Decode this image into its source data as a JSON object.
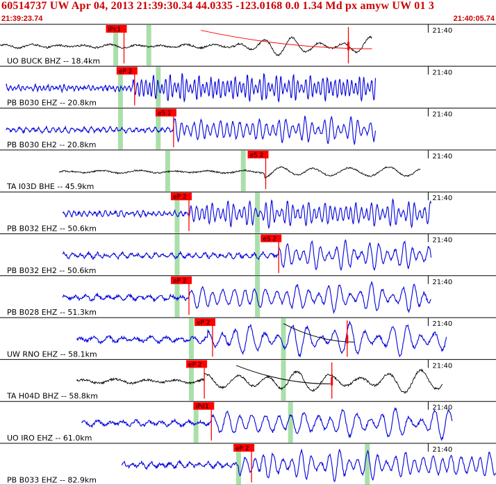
{
  "header": {
    "title": "60514737 UW Apr 04, 2013 21:39:30.34    44.0335 -123.0168  0.0 1.34 Md px amyw UW 01   3",
    "start_time": "21:39:23.74",
    "end_time": "21:40:05.74"
  },
  "colors": {
    "header": "#cc0000",
    "trace_blue": "#0000dd",
    "trace_black": "#000000",
    "pick": "#ff0000",
    "window": "#aadfaa",
    "grid": "#000000"
  },
  "chart_data": {
    "type": "line",
    "title": "",
    "xlabel": "",
    "ylabel": "",
    "x_range_seconds_after_start": [
      0,
      42
    ],
    "minute_marker": {
      "label": "21:40",
      "seconds_after_start": 36.26
    },
    "panels": [
      {
        "station_label": "UO BUCK BHZ -- 18.4km",
        "trace_color": "black",
        "amplitude": 0.55,
        "period": 2.2,
        "onset": 20.0,
        "trace_start": 0.0,
        "trace_end": 31.5,
        "windows": [
          9.8,
          12.6
        ],
        "picks": [
          {
            "label": "iPc1",
            "time": 10.5
          },
          {
            "label": "",
            "time": 29.5
          }
        ],
        "coda_curve": {
          "start": 17.0,
          "end": 31.5
        }
      },
      {
        "station_label": "PB B030 EHZ -- 20.8km",
        "trace_color": "blue",
        "amplitude": 0.85,
        "period": 0.35,
        "onset": 11.2,
        "trace_start": 0.5,
        "trace_end": 31.8,
        "windows": [
          10.2,
          13.4
        ],
        "picks": [
          {
            "label": "eP 2",
            "time": 11.4
          }
        ]
      },
      {
        "station_label": "PB B030 EH2 -- 20.8km",
        "trace_color": "blue",
        "amplitude": 0.8,
        "period": 0.55,
        "onset": 14.7,
        "trace_start": 0.5,
        "trace_end": 31.8,
        "windows": [
          10.2,
          13.4
        ],
        "picks": [
          {
            "label": "eS 1",
            "time": 14.7
          }
        ]
      },
      {
        "station_label": "TA I03D BHE -- 45.9km",
        "trace_color": "black",
        "amplitude": 0.45,
        "period": 3.0,
        "onset": 22.4,
        "trace_start": 5.0,
        "trace_end": 35.6,
        "windows": [
          14.2,
          20.6
        ],
        "picks": [
          {
            "label": "eS 2",
            "time": 22.5
          }
        ]
      },
      {
        "station_label": "PB B032 EHZ -- 50.6km",
        "trace_color": "blue",
        "amplitude": 0.8,
        "period": 0.45,
        "onset": 16.0,
        "trace_start": 5.3,
        "trace_end": 36.5,
        "windows": [
          15.0,
          21.8
        ],
        "picks": [
          {
            "label": "eP 2",
            "time": 16.0
          }
        ]
      },
      {
        "station_label": "PB B032 EH2 -- 50.6km",
        "trace_color": "blue",
        "amplitude": 0.85,
        "period": 0.7,
        "onset": 23.6,
        "trace_start": 5.3,
        "trace_end": 36.5,
        "windows": [
          15.0,
          21.8
        ],
        "picks": [
          {
            "label": "eS 2",
            "time": 23.6
          }
        ]
      },
      {
        "station_label": "PB B028 EHZ -- 51.3km",
        "trace_color": "blue",
        "amplitude": 0.85,
        "period": 0.9,
        "onset": 16.0,
        "trace_start": 5.3,
        "trace_end": 36.5,
        "windows": [
          15.0,
          21.8
        ],
        "picks": [
          {
            "label": "eP 2",
            "time": 16.0
          }
        ]
      },
      {
        "station_label": "UW RNO EHZ -- 58.1km",
        "trace_color": "blue",
        "amplitude": 0.95,
        "period": 1.2,
        "onset": 17.6,
        "trace_start": 6.5,
        "trace_end": 37.8,
        "windows": [
          16.2,
          24.0
        ],
        "picks": [
          {
            "label": "eP 2",
            "time": 18.0
          },
          {
            "label": "",
            "time": 29.4
          }
        ],
        "coda_curve": {
          "start": 24.0,
          "end": 30.0
        }
      },
      {
        "station_label": "TA H04D BHZ -- 58.8km",
        "trace_color": "black",
        "amplitude": 0.7,
        "period": 2.6,
        "onset": 17.3,
        "trace_start": 6.5,
        "trace_end": 37.5,
        "windows": [
          16.2,
          24.0
        ],
        "picks": [
          {
            "label": "eP 2",
            "time": 17.3
          },
          {
            "label": "",
            "time": 28.1
          }
        ],
        "coda_curve": {
          "start": 20.0,
          "end": 28.0
        }
      },
      {
        "station_label": "UO IRO EHZ -- 61.0km",
        "trace_color": "blue",
        "amplitude": 0.9,
        "period": 1.1,
        "onset": 17.9,
        "trace_start": 6.9,
        "trace_end": 38.3,
        "windows": [
          16.6,
          24.6
        ],
        "picks": [
          {
            "label": "iPd1",
            "time": 17.9
          }
        ]
      },
      {
        "station_label": "PB B033 EHZ -- 82.9km",
        "trace_color": "blue",
        "amplitude": 0.9,
        "period": 0.8,
        "onset": 20.2,
        "trace_start": 10.3,
        "trace_end": 42.0,
        "windows": [
          20.2,
          31.1
        ],
        "picks": [
          {
            "label": "eP 2",
            "time": 21.3
          }
        ]
      }
    ]
  }
}
